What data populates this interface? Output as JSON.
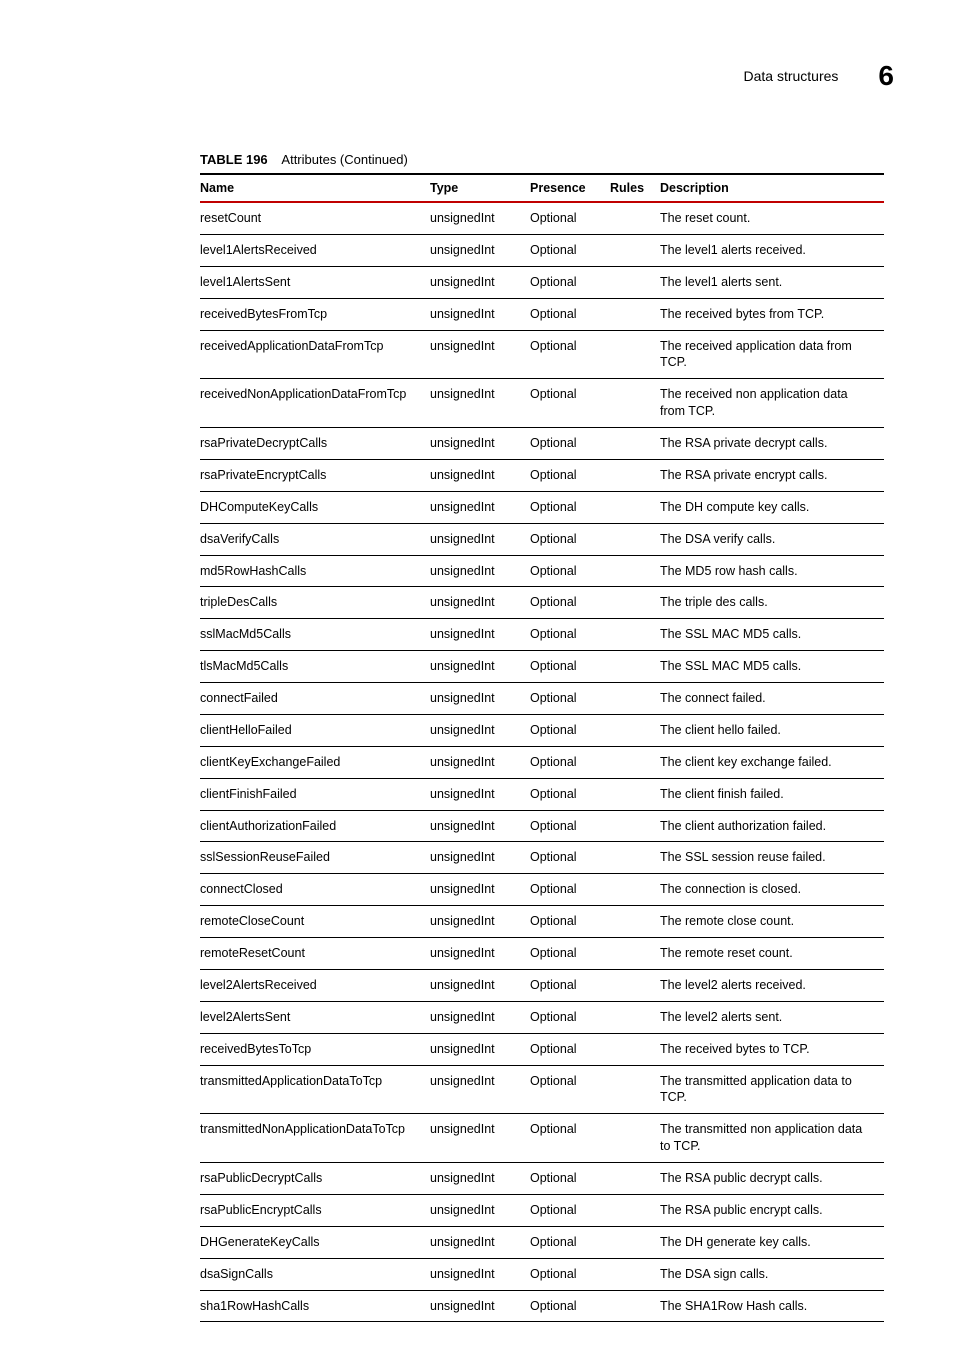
{
  "header": {
    "section_title": "Data structures",
    "chapter_number": "6"
  },
  "table": {
    "caption_label": "TABLE 196",
    "caption_text": "Attributes  (Continued)",
    "columns": {
      "name": "Name",
      "type": "Type",
      "presence": "Presence",
      "rules": "Rules",
      "description": "Description"
    },
    "header_underline_color": "#c00000",
    "row_border_color": "#000000",
    "font_family": "Arial",
    "base_fontsize_pt": 9.5,
    "rows": [
      {
        "name": "resetCount",
        "type": "unsignedInt",
        "presence": "Optional",
        "rules": "",
        "description": "The reset count."
      },
      {
        "name": "level1AlertsReceived",
        "type": "unsignedInt",
        "presence": "Optional",
        "rules": "",
        "description": "The level1 alerts received."
      },
      {
        "name": "level1AlertsSent",
        "type": "unsignedInt",
        "presence": "Optional",
        "rules": "",
        "description": "The level1 alerts sent."
      },
      {
        "name": "receivedBytesFromTcp",
        "type": "unsignedInt",
        "presence": "Optional",
        "rules": "",
        "description": "The received bytes from TCP."
      },
      {
        "name": "receivedApplicationDataFromTcp",
        "type": "unsignedInt",
        "presence": "Optional",
        "rules": "",
        "description": "The received application data from TCP."
      },
      {
        "name": "receivedNonApplicationDataFromTcp",
        "type": "unsignedInt",
        "presence": "Optional",
        "rules": "",
        "description": "The received non application data from TCP."
      },
      {
        "name": "rsaPrivateDecryptCalls",
        "type": "unsignedInt",
        "presence": "Optional",
        "rules": "",
        "description": "The RSA private decrypt calls."
      },
      {
        "name": "rsaPrivateEncryptCalls",
        "type": "unsignedInt",
        "presence": "Optional",
        "rules": "",
        "description": "The RSA private encrypt calls."
      },
      {
        "name": "DHComputeKeyCalls",
        "type": "unsignedInt",
        "presence": "Optional",
        "rules": "",
        "description": "The DH compute key calls."
      },
      {
        "name": "dsaVerifyCalls",
        "type": "unsignedInt",
        "presence": "Optional",
        "rules": "",
        "description": "The DSA verify calls."
      },
      {
        "name": "md5RowHashCalls",
        "type": "unsignedInt",
        "presence": "Optional",
        "rules": "",
        "description": "The MD5 row hash calls."
      },
      {
        "name": "tripleDesCalls",
        "type": "unsignedInt",
        "presence": "Optional",
        "rules": "",
        "description": "The triple des calls."
      },
      {
        "name": "sslMacMd5Calls",
        "type": "unsignedInt",
        "presence": "Optional",
        "rules": "",
        "description": "The SSL MAC MD5 calls."
      },
      {
        "name": "tlsMacMd5Calls",
        "type": "unsignedInt",
        "presence": "Optional",
        "rules": "",
        "description": "The SSL MAC MD5 calls."
      },
      {
        "name": "connectFailed",
        "type": "unsignedInt",
        "presence": "Optional",
        "rules": "",
        "description": "The connect failed."
      },
      {
        "name": "clientHelloFailed",
        "type": "unsignedInt",
        "presence": "Optional",
        "rules": "",
        "description": "The client hello failed."
      },
      {
        "name": "clientKeyExchangeFailed",
        "type": "unsignedInt",
        "presence": "Optional",
        "rules": "",
        "description": "The client key exchange failed."
      },
      {
        "name": "clientFinishFailed",
        "type": "unsignedInt",
        "presence": "Optional",
        "rules": "",
        "description": "The client finish failed."
      },
      {
        "name": "clientAuthorizationFailed",
        "type": "unsignedInt",
        "presence": "Optional",
        "rules": "",
        "description": "The client authorization failed."
      },
      {
        "name": "sslSessionReuseFailed",
        "type": "unsignedInt",
        "presence": "Optional",
        "rules": "",
        "description": "The SSL session reuse failed."
      },
      {
        "name": "connectClosed",
        "type": "unsignedInt",
        "presence": "Optional",
        "rules": "",
        "description": "The connection is closed."
      },
      {
        "name": "remoteCloseCount",
        "type": "unsignedInt",
        "presence": "Optional",
        "rules": "",
        "description": "The remote close count."
      },
      {
        "name": "remoteResetCount",
        "type": "unsignedInt",
        "presence": "Optional",
        "rules": "",
        "description": "The remote reset count."
      },
      {
        "name": "level2AlertsReceived",
        "type": "unsignedInt",
        "presence": "Optional",
        "rules": "",
        "description": "The level2  alerts received."
      },
      {
        "name": "level2AlertsSent",
        "type": "unsignedInt",
        "presence": "Optional",
        "rules": "",
        "description": "The level2 alerts sent."
      },
      {
        "name": "receivedBytesToTcp",
        "type": "unsignedInt",
        "presence": "Optional",
        "rules": "",
        "description": "The received bytes to TCP."
      },
      {
        "name": "transmittedApplicationDataToTcp",
        "type": "unsignedInt",
        "presence": "Optional",
        "rules": "",
        "description": "The transmitted application data to TCP."
      },
      {
        "name": "transmittedNonApplicationDataToTcp",
        "type": "unsignedInt",
        "presence": "Optional",
        "rules": "",
        "description": "The transmitted non application data to TCP."
      },
      {
        "name": "rsaPublicDecryptCalls",
        "type": "unsignedInt",
        "presence": "Optional",
        "rules": "",
        "description": "The RSA public decrypt calls."
      },
      {
        "name": "rsaPublicEncryptCalls",
        "type": "unsignedInt",
        "presence": "Optional",
        "rules": "",
        "description": "The RSA public encrypt calls."
      },
      {
        "name": "DHGenerateKeyCalls",
        "type": "unsignedInt",
        "presence": "Optional",
        "rules": "",
        "description": "The DH generate key calls."
      },
      {
        "name": "dsaSignCalls",
        "type": "unsignedInt",
        "presence": "Optional",
        "rules": "",
        "description": "The DSA sign calls."
      },
      {
        "name": "sha1RowHashCalls",
        "type": "unsignedInt",
        "presence": "Optional",
        "rules": "",
        "description": "The SHA1Row Hash calls."
      }
    ]
  }
}
